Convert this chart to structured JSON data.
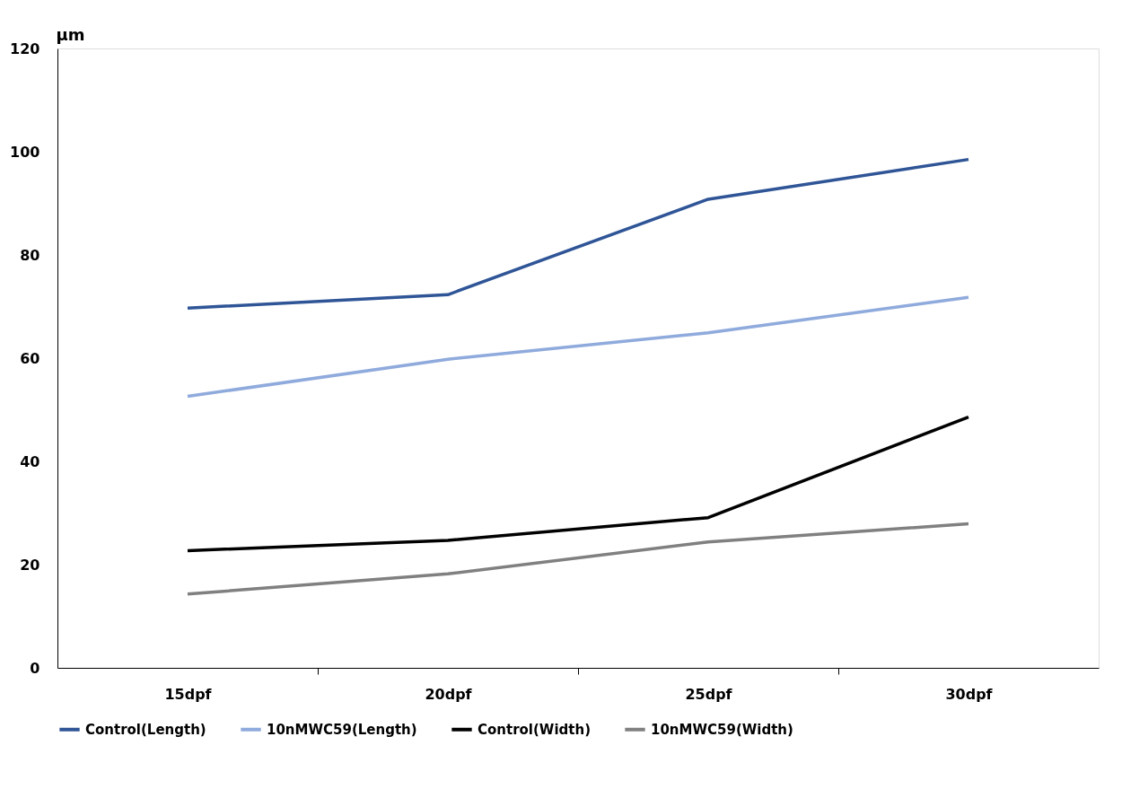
{
  "chart_data": {
    "type": "line",
    "ylabel": "µm",
    "categories": [
      "15dpf",
      "20dpf",
      "25dpf",
      "30dpf"
    ],
    "series": [
      {
        "name": "Control(Length)",
        "color": "#2f5597",
        "values": [
          69.7,
          72.3,
          90.8,
          98.5
        ]
      },
      {
        "name": "10nMWC59(Length)",
        "color": "#8faadc",
        "values": [
          52.6,
          59.8,
          64.9,
          71.8
        ]
      },
      {
        "name": "Control(Width)",
        "color": "#000000",
        "values": [
          22.7,
          24.7,
          29.1,
          48.6
        ]
      },
      {
        "name": "10nMWC59(Width)",
        "color": "#808080",
        "values": [
          14.3,
          18.2,
          24.4,
          27.9
        ]
      }
    ],
    "ylim": [
      0,
      120
    ],
    "yticks": [
      0,
      20,
      40,
      60,
      80,
      100,
      120
    ],
    "grid": false,
    "legend": "bottom",
    "marker": "none",
    "line_style": "solid"
  }
}
